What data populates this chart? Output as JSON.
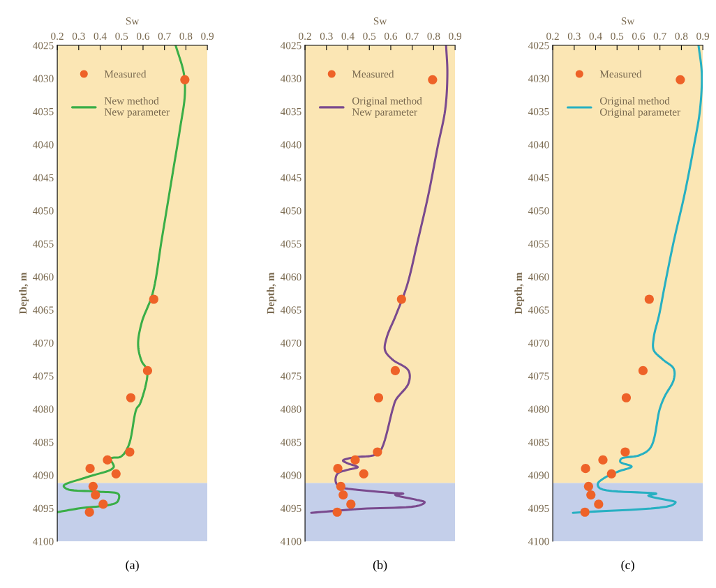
{
  "chart_data": [
    {
      "type": "line",
      "xlabel": "Sw",
      "ylabel": "Depth, m",
      "annotations": [
        "(a)"
      ],
      "xlim": [
        0.2,
        0.9
      ],
      "xticks": [
        0.2,
        0.3,
        0.4,
        0.5,
        0.6,
        0.7,
        0.8,
        0.9
      ],
      "ylim": [
        4100,
        4025
      ],
      "yticks": [
        4025,
        4030,
        4035,
        4040,
        4045,
        4050,
        4055,
        4060,
        4065,
        4070,
        4075,
        4080,
        4085,
        4090,
        4095,
        4100
      ],
      "grid": false,
      "legend": "top left",
      "bands": [
        {
          "axis": "y",
          "from": 4025,
          "to": 4091.2,
          "color": "#fbe6b4"
        },
        {
          "axis": "y",
          "from": 4091.2,
          "to": 4100,
          "color": "#c4cfea"
        }
      ],
      "series": [
        {
          "name": "Measured",
          "type": "scatter",
          "marker": "circle",
          "color": "#ee6228",
          "x": [
            0.795,
            0.65,
            0.621,
            0.543,
            0.538,
            0.434,
            0.353,
            0.474,
            0.367,
            0.378,
            0.414,
            0.35
          ],
          "values": [
            4030.2,
            4063.4,
            4074.2,
            4078.3,
            4086.5,
            4087.7,
            4089.0,
            4089.8,
            4091.7,
            4093.0,
            4094.4,
            4095.6
          ]
        },
        {
          "name": "New method\nNew parameter",
          "type": "line",
          "marker": "none",
          "line_style": "solid",
          "color": "#3aae47",
          "x": [
            0.752,
            0.79,
            0.795,
            0.773,
            0.739,
            0.688,
            0.645,
            0.594,
            0.577,
            0.594,
            0.62,
            0.586,
            0.569,
            0.533,
            0.497,
            0.449,
            0.463,
            0.339,
            0.23,
            0.245,
            0.392,
            0.486,
            0.481,
            0.444,
            0.309,
            0.2
          ],
          "values": [
            4025,
            4029.2,
            4032.5,
            4037.5,
            4044.2,
            4054.2,
            4062.5,
            4066.9,
            4070.3,
            4072.8,
            4074.2,
            4079.2,
            4080.0,
            4085.5,
            4087.2,
            4087.5,
            4088.8,
            4090.3,
            4091.6,
            4092.1,
            4092.5,
            4092.9,
            4094.0,
            4094.5,
            4095.0,
            4095.6
          ]
        }
      ]
    },
    {
      "type": "line",
      "xlabel": "Sw",
      "ylabel": "Depth, m",
      "annotations": [
        "(b)"
      ],
      "xlim": [
        0.2,
        0.9
      ],
      "xticks": [
        0.2,
        0.3,
        0.4,
        0.5,
        0.6,
        0.7,
        0.8,
        0.9
      ],
      "ylim": [
        4100,
        4025
      ],
      "yticks": [
        4025,
        4030,
        4035,
        4040,
        4045,
        4050,
        4055,
        4060,
        4065,
        4070,
        4075,
        4080,
        4085,
        4090,
        4095,
        4100
      ],
      "grid": false,
      "legend": "top left",
      "bands": [
        {
          "axis": "y",
          "from": 4025,
          "to": 4091.2,
          "color": "#fbe6b4"
        },
        {
          "axis": "y",
          "from": 4091.2,
          "to": 4100,
          "color": "#c4cfea"
        }
      ],
      "series": [
        {
          "name": "Measured",
          "type": "scatter",
          "marker": "circle",
          "color": "#ee6228",
          "x": [
            0.795,
            0.65,
            0.621,
            0.543,
            0.538,
            0.434,
            0.353,
            0.474,
            0.367,
            0.378,
            0.414,
            0.35
          ],
          "values": [
            4030.2,
            4063.4,
            4074.2,
            4078.3,
            4086.5,
            4087.7,
            4089.0,
            4089.8,
            4091.7,
            4093.0,
            4094.4,
            4095.6
          ]
        },
        {
          "name": "Original method\nNew parameter",
          "type": "line",
          "marker": "none",
          "line_style": "solid",
          "color": "#7a4a8e",
          "x": [
            0.858,
            0.864,
            0.854,
            0.819,
            0.776,
            0.725,
            0.675,
            0.624,
            0.581,
            0.573,
            0.607,
            0.683,
            0.683,
            0.624,
            0.61,
            0.552,
            0.52,
            0.43,
            0.377,
            0.398,
            0.446,
            0.398,
            0.351,
            0.343,
            0.361,
            0.388,
            0.61,
            0.658,
            0.621,
            0.716,
            0.758,
            0.732,
            0.462,
            0.229
          ],
          "values": [
            4025,
            4029.2,
            4034.7,
            4040.3,
            4047.5,
            4054.7,
            4061.4,
            4065.8,
            4069.2,
            4071.1,
            4072.5,
            4074.2,
            4076.1,
            4078.6,
            4079.9,
            4086.3,
            4087.0,
            4087.3,
            4087.8,
            4088.2,
            4088.8,
            4089.2,
            4089.8,
            4091.0,
            4091.8,
            4092.0,
            4092.7,
            4092.8,
            4093.0,
            4093.7,
            4094.1,
            4094.6,
            4095.1,
            4095.7
          ]
        }
      ]
    },
    {
      "type": "line",
      "xlabel": "Sw",
      "ylabel": "Depth, m",
      "annotations": [
        "(c)"
      ],
      "xlim": [
        0.2,
        0.9
      ],
      "xticks": [
        0.2,
        0.3,
        0.4,
        0.5,
        0.6,
        0.7,
        0.8,
        0.9
      ],
      "ylim": [
        4100,
        4025
      ],
      "yticks": [
        4025,
        4030,
        4035,
        4040,
        4045,
        4050,
        4055,
        4060,
        4065,
        4070,
        4075,
        4080,
        4085,
        4090,
        4095,
        4100
      ],
      "grid": false,
      "legend": "top left",
      "bands": [
        {
          "axis": "y",
          "from": 4025,
          "to": 4091.2,
          "color": "#fbe6b4"
        },
        {
          "axis": "y",
          "from": 4091.2,
          "to": 4100,
          "color": "#c4cfea"
        }
      ],
      "series": [
        {
          "name": "Measured",
          "type": "scatter",
          "marker": "circle",
          "color": "#ee6228",
          "x": [
            0.795,
            0.65,
            0.621,
            0.543,
            0.538,
            0.434,
            0.353,
            0.474,
            0.367,
            0.378,
            0.414,
            0.35
          ],
          "values": [
            4030.2,
            4063.4,
            4074.2,
            4078.3,
            4086.5,
            4087.7,
            4089.0,
            4089.8,
            4091.7,
            4093.0,
            4094.4,
            4095.6
          ]
        },
        {
          "name": "Original method\nOriginal parameter",
          "type": "line",
          "marker": "none",
          "line_style": "solid",
          "color": "#27b0c2",
          "x": [
            0.88,
            0.895,
            0.887,
            0.858,
            0.815,
            0.764,
            0.722,
            0.696,
            0.671,
            0.671,
            0.713,
            0.764,
            0.764,
            0.722,
            0.699,
            0.657,
            0.604,
            0.52,
            0.515,
            0.568,
            0.51,
            0.447,
            0.41,
            0.42,
            0.657,
            0.683,
            0.646,
            0.768,
            0.773,
            0.752,
            0.294
          ],
          "values": [
            4025,
            4029.2,
            4034.7,
            4040.3,
            4047.5,
            4054.7,
            4061.4,
            4065.8,
            4069.2,
            4071.1,
            4072.5,
            4073.9,
            4075.6,
            4078.1,
            4080.0,
            4085.8,
            4087.0,
            4087.5,
            4088.0,
            4088.7,
            4089.4,
            4090.3,
            4091.3,
            4092.0,
            4092.7,
            4092.8,
            4093.1,
            4094.0,
            4094.1,
            4094.6,
            4095.7
          ]
        }
      ]
    }
  ]
}
